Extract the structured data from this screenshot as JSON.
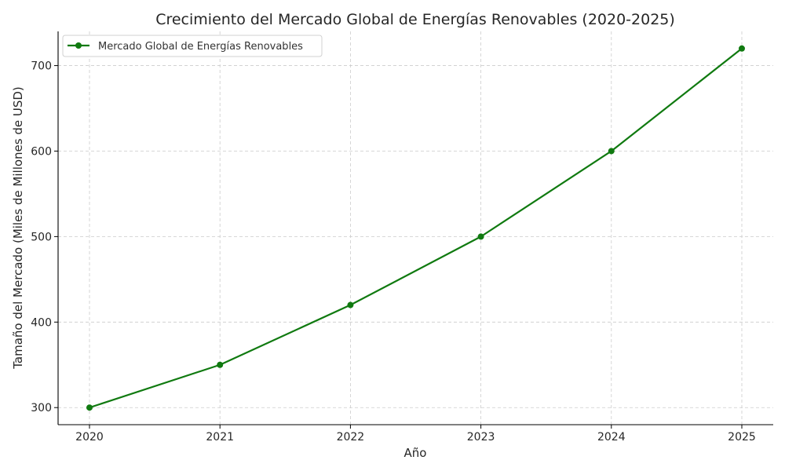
{
  "chart_data": {
    "type": "line",
    "title": "Crecimiento del Mercado Global de Energías Renovables (2020-2025)",
    "xlabel": "Año",
    "ylabel": "Tamaño del Mercado (Miles de Millones de USD)",
    "x": [
      "2020",
      "2021",
      "2022",
      "2023",
      "2024",
      "2025"
    ],
    "series": [
      {
        "name": "Mercado Global de Energías Renovables",
        "values": [
          300,
          350,
          420,
          500,
          600,
          720
        ],
        "color": "#107a10",
        "marker": "circle"
      }
    ],
    "yticks": [
      300,
      400,
      500,
      600,
      700
    ],
    "ylim": [
      280,
      740
    ],
    "grid": true,
    "legend_position": "top-left"
  }
}
